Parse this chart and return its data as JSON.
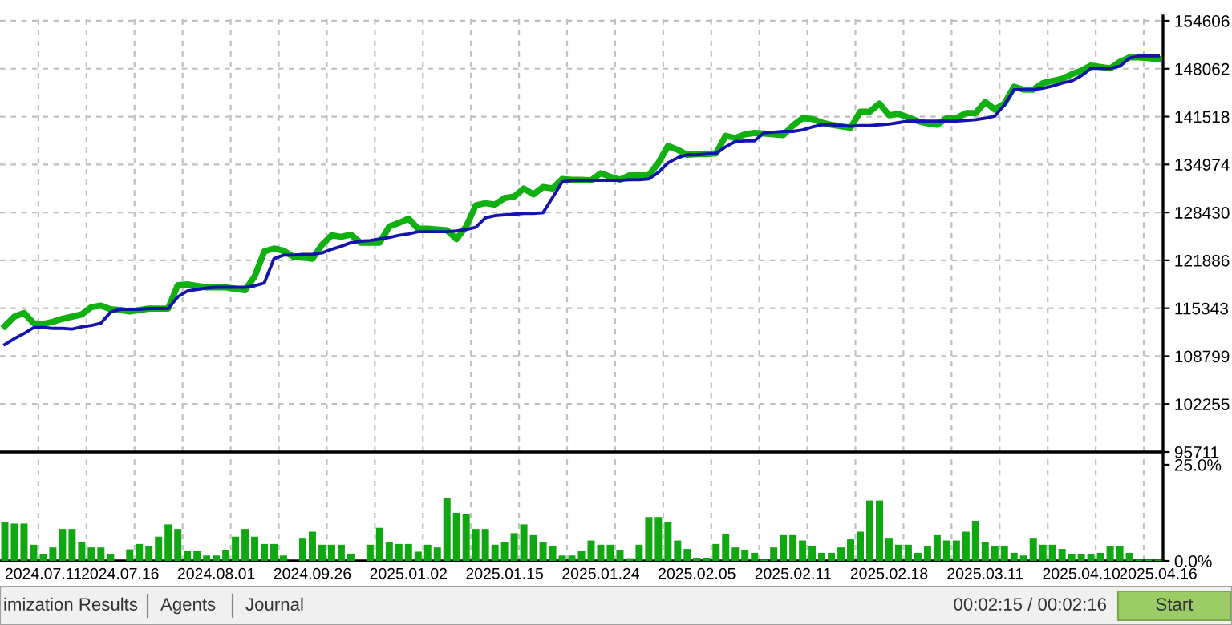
{
  "chart_data": [
    {
      "type": "line",
      "categories": [
        null,
        null,
        null,
        null,
        "2024.07.11",
        null,
        null,
        null,
        null,
        null,
        null,
        null,
        "2024.07.16",
        null,
        null,
        null,
        null,
        null,
        null,
        null,
        null,
        null,
        "2024.08.01",
        null,
        null,
        null,
        null,
        null,
        null,
        null,
        null,
        null,
        "2024.09.26",
        null,
        null,
        null,
        null,
        null,
        null,
        null,
        null,
        null,
        "2025.01.02",
        null,
        null,
        null,
        null,
        null,
        null,
        null,
        null,
        null,
        "2025.01.15",
        null,
        null,
        null,
        null,
        null,
        null,
        null,
        null,
        null,
        "2025.01.24",
        null,
        null,
        null,
        null,
        null,
        null,
        null,
        null,
        null,
        "2025.02.05",
        null,
        null,
        null,
        null,
        null,
        null,
        null,
        null,
        null,
        "2025.02.11",
        null,
        null,
        null,
        null,
        null,
        null,
        null,
        null,
        null,
        "2025.02.18",
        null,
        null,
        null,
        null,
        null,
        null,
        null,
        null,
        null,
        "2025.03.11",
        null,
        null,
        null,
        null,
        null,
        null,
        null,
        null,
        null,
        "2025.04.10",
        null,
        null,
        null,
        null,
        null,
        null,
        null,
        "2025.04.16"
      ],
      "ylim": [
        95711,
        155260
      ],
      "legend": false,
      "yticks": [
        95711,
        102255,
        108799,
        115343,
        121886,
        128430,
        134974,
        141518,
        148062,
        154606
      ],
      "tick_labels": "y",
      "grid": true,
      "series": [
        {
          "color": "#10b010",
          "values": [
            112900,
            114200,
            114700,
            113300,
            113200,
            113500,
            113900,
            114200,
            114500,
            115500,
            115700,
            115200,
            115100,
            114900,
            115100,
            115300,
            115300,
            115300,
            118500,
            118600,
            118400,
            118200,
            118200,
            118200,
            118000,
            117800,
            119700,
            123100,
            123500,
            123200,
            122400,
            122300,
            122100,
            124000,
            125300,
            125100,
            125400,
            124300,
            124300,
            124300,
            126500,
            127000,
            127600,
            126200,
            126200,
            126100,
            126000,
            124800,
            126500,
            129400,
            129700,
            129500,
            130400,
            130600,
            131700,
            130900,
            131900,
            131700,
            133000,
            132900,
            132900,
            132800,
            133800,
            133300,
            132900,
            133500,
            133500,
            133500,
            135200,
            137500,
            137000,
            136300,
            136400,
            136400,
            136500,
            138900,
            138600,
            139100,
            139300,
            139200,
            139100,
            139000,
            140300,
            141300,
            141200,
            140700,
            140400,
            140200,
            140000,
            142200,
            142200,
            143300,
            141700,
            141900,
            141400,
            140900,
            140600,
            140400,
            141300,
            141300,
            142000,
            142000,
            143500,
            142500,
            143300,
            145600,
            145200,
            145200,
            146100,
            146400,
            146700,
            147300,
            147800,
            148500,
            148300,
            148100,
            149000,
            149600,
            149600,
            149500,
            149400
          ]
        },
        {
          "color": "#1414aa",
          "values": [
            110400,
            111200,
            111900,
            112700,
            112700,
            112600,
            112600,
            112500,
            112800,
            113000,
            113300,
            114800,
            115200,
            115200,
            115200,
            115300,
            115300,
            115300,
            116900,
            117700,
            117900,
            118100,
            118200,
            118200,
            118200,
            118200,
            118400,
            118800,
            122100,
            122600,
            122600,
            122700,
            122700,
            122900,
            123400,
            123800,
            124300,
            124500,
            124600,
            124800,
            125000,
            125300,
            125500,
            125800,
            125800,
            125800,
            125800,
            125900,
            126100,
            126400,
            127700,
            128000,
            128100,
            128200,
            128300,
            128300,
            128400,
            130500,
            132600,
            132800,
            132800,
            132800,
            132800,
            132800,
            132800,
            132900,
            132900,
            133000,
            133900,
            135200,
            135900,
            136300,
            136300,
            136400,
            136500,
            137400,
            138100,
            138200,
            138200,
            139300,
            139400,
            139500,
            139500,
            139700,
            140100,
            140400,
            140400,
            140300,
            140200,
            140300,
            140300,
            140400,
            140500,
            140700,
            140900,
            140900,
            140900,
            140900,
            140900,
            140900,
            141000,
            141100,
            141300,
            141600,
            143100,
            145200,
            145200,
            145200,
            145400,
            145700,
            146100,
            146400,
            147100,
            148100,
            148100,
            148100,
            148400,
            149500,
            149800,
            149800,
            149800
          ]
        }
      ]
    },
    {
      "type": "bar",
      "categories": [
        null,
        null,
        null,
        null,
        "2024.07.11",
        null,
        null,
        null,
        null,
        null,
        null,
        null,
        "2024.07.16",
        null,
        null,
        null,
        null,
        null,
        null,
        null,
        null,
        null,
        "2024.08.01",
        null,
        null,
        null,
        null,
        null,
        null,
        null,
        null,
        null,
        "2024.09.26",
        null,
        null,
        null,
        null,
        null,
        null,
        null,
        null,
        null,
        "2025.01.02",
        null,
        null,
        null,
        null,
        null,
        null,
        null,
        null,
        null,
        "2025.01.15",
        null,
        null,
        null,
        null,
        null,
        null,
        null,
        null,
        null,
        "2025.01.24",
        null,
        null,
        null,
        null,
        null,
        null,
        null,
        null,
        null,
        "2025.02.05",
        null,
        null,
        null,
        null,
        null,
        null,
        null,
        null,
        null,
        "2025.02.11",
        null,
        null,
        null,
        null,
        null,
        null,
        null,
        null,
        null,
        "2025.02.18",
        null,
        null,
        null,
        null,
        null,
        null,
        null,
        null,
        null,
        "2025.03.11",
        null,
        null,
        null,
        null,
        null,
        null,
        null,
        null,
        null,
        "2025.04.10",
        null,
        null,
        null,
        null,
        null,
        null,
        null,
        "2025.04.16"
      ],
      "ylim": [
        0,
        27.9
      ],
      "yticks": [
        {
          "value": 0,
          "label": "0.0%"
        },
        {
          "value": 25,
          "label": "25.0%"
        }
      ],
      "grid": "x",
      "annotations": [
        "imization Results",
        "Agents",
        "Journal",
        "00:02:15 / 00:02:16",
        "Start"
      ],
      "series": [
        {
          "color": "#10a810",
          "values": [
            10.0,
            9.7,
            9.7,
            4.2,
            1.7,
            3.5,
            8.3,
            8.3,
            4.9,
            3.5,
            3.5,
            1.7,
            0,
            3.0,
            4.4,
            3.8,
            6.3,
            9.5,
            8.3,
            2.5,
            2.5,
            1.4,
            1.4,
            2.8,
            6.3,
            8.3,
            6.3,
            4.4,
            4.4,
            1.4,
            0,
            5.8,
            7.6,
            4.2,
            4.2,
            4.2,
            1.9,
            0,
            4.2,
            8.6,
            4.9,
            4.4,
            4.4,
            2.4,
            4.2,
            3.5,
            16.4,
            12.5,
            12.2,
            8.3,
            8.3,
            4.2,
            4.9,
            7.2,
            9.5,
            6.7,
            4.9,
            3.9,
            1.4,
            1.4,
            2.5,
            5.3,
            4.2,
            4.2,
            2.8,
            0.5,
            4.2,
            11.4,
            11.4,
            10.0,
            5.3,
            3.1,
            0.7,
            0.7,
            4.4,
            7.0,
            3.5,
            2.8,
            2.1,
            0.3,
            3.5,
            6.7,
            6.7,
            5.3,
            3.9,
            2.1,
            2.1,
            3.5,
            5.6,
            7.6,
            15.7,
            15.7,
            5.8,
            4.2,
            4.2,
            2.1,
            3.9,
            6.7,
            5.3,
            5.3,
            7.6,
            10.4,
            4.9,
            3.9,
            3.9,
            2.1,
            1.4,
            5.8,
            4.2,
            4.2,
            3.1,
            1.7,
            1.7,
            1.7,
            2.1,
            3.9,
            3.9,
            2.1,
            0.3,
            0.3,
            0.3
          ]
        }
      ]
    }
  ]
}
